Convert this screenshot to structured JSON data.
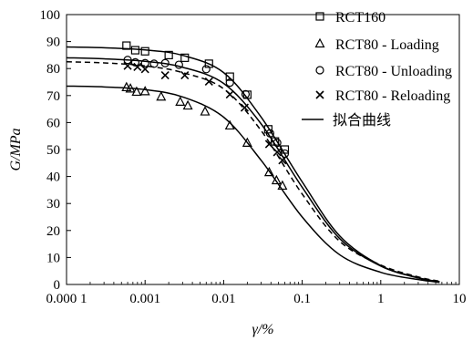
{
  "chart_data": {
    "type": "scatter",
    "title": "",
    "xlabel": "γ/%",
    "ylabel": "G/MPa",
    "xscale": "log",
    "xlim": [
      0.0001,
      10
    ],
    "ylim": [
      0,
      100
    ],
    "xticks": [
      {
        "value": 0.0001,
        "label": "0.000 1"
      },
      {
        "value": 0.001,
        "label": "0.001"
      },
      {
        "value": 0.01,
        "label": "0.01"
      },
      {
        "value": 0.1,
        "label": "0.1"
      },
      {
        "value": 1,
        "label": "1"
      },
      {
        "value": 10,
        "label": "10"
      }
    ],
    "yticks": [
      0,
      10,
      20,
      30,
      40,
      50,
      60,
      70,
      80,
      90,
      100
    ],
    "legend_position": "top-right",
    "series": [
      {
        "name": "RCT160",
        "marker": "square",
        "points": [
          [
            0.00058,
            88.5
          ],
          [
            0.00075,
            86.8
          ],
          [
            0.001,
            86.4
          ],
          [
            0.002,
            85.0
          ],
          [
            0.0032,
            84.0
          ],
          [
            0.0065,
            81.8
          ],
          [
            0.012,
            77.0
          ],
          [
            0.02,
            70.3
          ],
          [
            0.037,
            57.5
          ],
          [
            0.045,
            53.0
          ],
          [
            0.06,
            50.0
          ]
        ]
      },
      {
        "name": "RCT80 - Loading",
        "marker": "triangle",
        "points": [
          [
            0.00058,
            73.0
          ],
          [
            0.00065,
            72.5
          ],
          [
            0.00078,
            71.3
          ],
          [
            0.001,
            71.5
          ],
          [
            0.0016,
            69.5
          ],
          [
            0.0028,
            67.6
          ],
          [
            0.0035,
            66.2
          ],
          [
            0.0058,
            64.0
          ],
          [
            0.012,
            58.8
          ],
          [
            0.02,
            52.4
          ],
          [
            0.038,
            41.5
          ],
          [
            0.047,
            38.5
          ],
          [
            0.056,
            36.5
          ]
        ]
      },
      {
        "name": "RCT80 - Unloading",
        "marker": "circle",
        "points": [
          [
            0.0006,
            83.2
          ],
          [
            0.00075,
            82.3
          ],
          [
            0.001,
            82.0
          ],
          [
            0.0013,
            81.8
          ],
          [
            0.0018,
            82.0
          ],
          [
            0.0027,
            81.4
          ],
          [
            0.006,
            79.8
          ],
          [
            0.012,
            74.8
          ],
          [
            0.019,
            70.5
          ],
          [
            0.039,
            56.0
          ],
          [
            0.048,
            52.5
          ],
          [
            0.06,
            48.5
          ]
        ]
      },
      {
        "name": "RCT80 - Reloading",
        "marker": "cross",
        "points": [
          [
            0.0006,
            81.0
          ],
          [
            0.0008,
            80.6
          ],
          [
            0.001,
            79.8
          ],
          [
            0.0018,
            77.5
          ],
          [
            0.0032,
            77.5
          ],
          [
            0.0065,
            75.2
          ],
          [
            0.012,
            70.4
          ],
          [
            0.0185,
            65.5
          ],
          [
            0.038,
            52.0
          ],
          [
            0.048,
            49.0
          ],
          [
            0.056,
            46.0
          ]
        ]
      }
    ],
    "fit_curves": {
      "legend_label": "拟合曲线",
      "curves": [
        {
          "style": "solid",
          "points": [
            [
              0.0001,
              88.0
            ],
            [
              0.0003,
              87.7
            ],
            [
              0.001,
              86.9
            ],
            [
              0.003,
              84.9
            ],
            [
              0.01,
              78.5
            ],
            [
              0.03,
              62.0
            ],
            [
              0.1,
              38.0
            ],
            [
              0.3,
              18.0
            ],
            [
              1,
              7.0
            ],
            [
              3,
              2.5
            ],
            [
              5.6,
              1.0
            ]
          ]
        },
        {
          "style": "solid",
          "points": [
            [
              0.0001,
              84.0
            ],
            [
              0.0003,
              83.6
            ],
            [
              0.001,
              82.7
            ],
            [
              0.003,
              80.5
            ],
            [
              0.01,
              74.5
            ],
            [
              0.03,
              59.5
            ],
            [
              0.1,
              36.0
            ],
            [
              0.3,
              17.0
            ],
            [
              1,
              6.8
            ],
            [
              3,
              2.4
            ],
            [
              5.6,
              1.0
            ]
          ]
        },
        {
          "style": "dashed",
          "points": [
            [
              0.0001,
              82.5
            ],
            [
              0.0003,
              82.1
            ],
            [
              0.001,
              81.0
            ],
            [
              0.003,
              78.5
            ],
            [
              0.01,
              72.5
            ],
            [
              0.03,
              57.0
            ],
            [
              0.1,
              33.5
            ],
            [
              0.3,
              16.0
            ],
            [
              1,
              7.2
            ],
            [
              3,
              2.8
            ],
            [
              5.6,
              1.2
            ]
          ]
        },
        {
          "style": "solid",
          "points": [
            [
              0.0001,
              73.5
            ],
            [
              0.0003,
              73.2
            ],
            [
              0.001,
              72.2
            ],
            [
              0.003,
              69.5
            ],
            [
              0.01,
              62.0
            ],
            [
              0.03,
              46.0
            ],
            [
              0.1,
              25.0
            ],
            [
              0.3,
              11.0
            ],
            [
              1,
              4.5
            ],
            [
              3,
              1.8
            ],
            [
              5.6,
              0.8
            ]
          ]
        }
      ]
    }
  }
}
